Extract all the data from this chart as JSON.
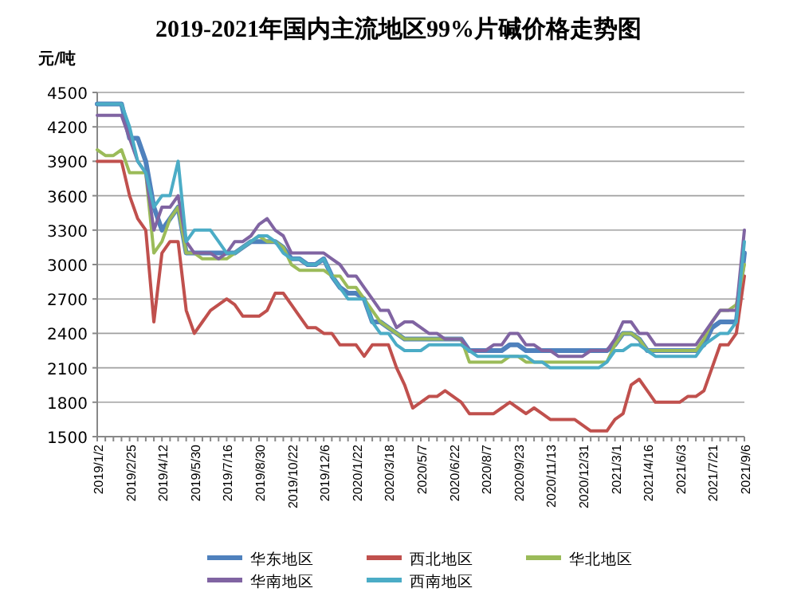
{
  "chart_data": {
    "type": "line",
    "title": "2019-2021年国内主流地区99%片碱价格走势图",
    "ylabel": "元/吨",
    "categories": [
      "2019/1/2",
      null,
      null,
      null,
      "2019/2/25",
      null,
      null,
      null,
      "2019/4/12",
      null,
      null,
      null,
      "2019/5/30",
      null,
      null,
      null,
      "2019/7/16",
      null,
      null,
      null,
      "2019/8/30",
      null,
      null,
      null,
      "2019/10/22",
      null,
      null,
      null,
      "2019/12/6",
      null,
      null,
      null,
      "2020/1/22",
      null,
      null,
      null,
      "2020/3/18",
      null,
      null,
      null,
      "2020/5/7",
      null,
      null,
      null,
      "2020/6/22",
      null,
      null,
      null,
      "2020/8/7",
      null,
      null,
      null,
      "2020/9/23",
      null,
      null,
      null,
      "2020/11/13",
      null,
      null,
      null,
      "2020/12/31",
      null,
      null,
      null,
      "2021/3/1",
      null,
      null,
      null,
      "2021/4/16",
      null,
      null,
      null,
      "2021/6/3",
      null,
      null,
      null,
      "2021/7/21",
      null,
      null,
      null,
      "2021/9/6"
    ],
    "series": [
      {
        "name": "华东地区",
        "color": "#4f81bd",
        "values": [
          4400,
          4400,
          4400,
          4400,
          4100,
          4100,
          3900,
          3500,
          3300,
          3400,
          3500,
          3100,
          3100,
          3100,
          3100,
          3100,
          3100,
          3100,
          3150,
          3200,
          3200,
          3200,
          3200,
          3150,
          3050,
          3050,
          3000,
          3000,
          3050,
          2900,
          2800,
          2750,
          2750,
          2700,
          2500,
          2500,
          2450,
          2400,
          2350,
          2350,
          2350,
          2350,
          2350,
          2350,
          2350,
          2350,
          2250,
          2250,
          2250,
          2250,
          2250,
          2300,
          2300,
          2250,
          2250,
          2250,
          2250,
          2250,
          2250,
          2250,
          2250,
          2250,
          2250,
          2250,
          2300,
          2400,
          2400,
          2350,
          2250,
          2250,
          2250,
          2250,
          2250,
          2250,
          2250,
          2300,
          2450,
          2500,
          2500,
          2500,
          3100
        ]
      },
      {
        "name": "西北地区",
        "color": "#c0504d",
        "values": [
          3900,
          3900,
          3900,
          3900,
          3600,
          3400,
          3300,
          2500,
          3100,
          3200,
          3200,
          2600,
          2400,
          2500,
          2600,
          2650,
          2700,
          2650,
          2550,
          2550,
          2550,
          2600,
          2750,
          2750,
          2650,
          2550,
          2450,
          2450,
          2400,
          2400,
          2300,
          2300,
          2300,
          2200,
          2300,
          2300,
          2300,
          2100,
          1950,
          1750,
          1800,
          1850,
          1850,
          1900,
          1850,
          1800,
          1700,
          1700,
          1700,
          1700,
          1750,
          1800,
          1750,
          1700,
          1750,
          1700,
          1650,
          1650,
          1650,
          1650,
          1600,
          1550,
          1550,
          1550,
          1650,
          1700,
          1950,
          2000,
          1900,
          1800,
          1800,
          1800,
          1800,
          1850,
          1850,
          1900,
          2100,
          2300,
          2300,
          2400,
          2900
        ]
      },
      {
        "name": "华北地区",
        "color": "#9bbb59",
        "values": [
          4000,
          3950,
          3950,
          4000,
          3800,
          3800,
          3800,
          3100,
          3200,
          3400,
          3500,
          3100,
          3100,
          3050,
          3050,
          3050,
          3050,
          3100,
          3150,
          3200,
          3250,
          3200,
          3200,
          3150,
          3000,
          2950,
          2950,
          2950,
          2950,
          2900,
          2900,
          2800,
          2800,
          2700,
          2600,
          2500,
          2450,
          2400,
          2350,
          2350,
          2350,
          2350,
          2350,
          2350,
          2350,
          2350,
          2150,
          2150,
          2150,
          2150,
          2150,
          2200,
          2200,
          2150,
          2150,
          2150,
          2150,
          2150,
          2150,
          2150,
          2150,
          2150,
          2150,
          2150,
          2300,
          2400,
          2400,
          2350,
          2250,
          2250,
          2250,
          2250,
          2250,
          2250,
          2250,
          2350,
          2500,
          2600,
          2600,
          2650,
          3000
        ]
      },
      {
        "name": "华南地区",
        "color": "#8064a2",
        "values": [
          4300,
          4300,
          4300,
          4300,
          4100,
          3900,
          3800,
          3300,
          3500,
          3500,
          3600,
          3200,
          3100,
          3100,
          3100,
          3050,
          3100,
          3200,
          3200,
          3250,
          3350,
          3400,
          3300,
          3250,
          3100,
          3100,
          3100,
          3100,
          3100,
          3050,
          3000,
          2900,
          2900,
          2800,
          2700,
          2600,
          2600,
          2450,
          2500,
          2500,
          2450,
          2400,
          2400,
          2350,
          2350,
          2350,
          2250,
          2250,
          2250,
          2300,
          2300,
          2400,
          2400,
          2300,
          2300,
          2250,
          2250,
          2200,
          2200,
          2200,
          2200,
          2250,
          2250,
          2250,
          2350,
          2500,
          2500,
          2400,
          2400,
          2300,
          2300,
          2300,
          2300,
          2300,
          2300,
          2400,
          2500,
          2600,
          2600,
          2600,
          3300
        ]
      },
      {
        "name": "西南地区",
        "color": "#4bacc6",
        "values": [
          4400,
          4400,
          4400,
          4400,
          4200,
          3900,
          3800,
          3500,
          3600,
          3600,
          3900,
          3200,
          3300,
          3300,
          3300,
          3200,
          3100,
          3100,
          3150,
          3200,
          3250,
          3250,
          3200,
          3100,
          3050,
          3050,
          3000,
          3000,
          3050,
          2900,
          2800,
          2700,
          2700,
          2700,
          2500,
          2400,
          2400,
          2300,
          2250,
          2250,
          2250,
          2300,
          2300,
          2300,
          2300,
          2300,
          2250,
          2200,
          2200,
          2200,
          2200,
          2200,
          2200,
          2200,
          2150,
          2150,
          2100,
          2100,
          2100,
          2100,
          2100,
          2100,
          2100,
          2150,
          2250,
          2250,
          2300,
          2300,
          2250,
          2200,
          2200,
          2200,
          2200,
          2200,
          2200,
          2300,
          2350,
          2400,
          2400,
          2500,
          3200
        ]
      }
    ],
    "ylim": [
      1500,
      4500
    ],
    "yticks": [
      1500,
      1800,
      2100,
      2400,
      2700,
      3000,
      3300,
      3600,
      3900,
      4200,
      4500
    ],
    "grid": "y",
    "legend": "bottom",
    "marker": "none",
    "line_style": "solid"
  }
}
